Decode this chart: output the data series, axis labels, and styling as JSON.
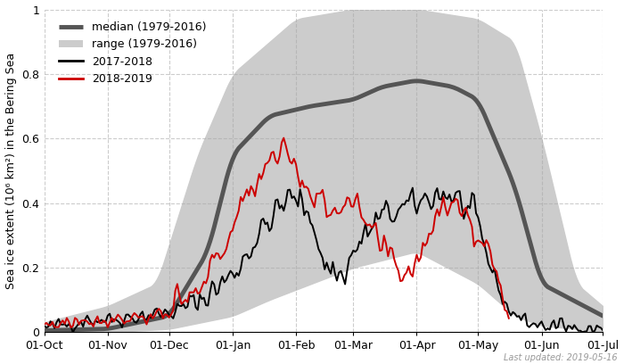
{
  "ylabel": "Sea ice extent (10⁶ km²) in the Bering Sea",
  "ylim": [
    0,
    1.0
  ],
  "grid_color": "#aaaaaa",
  "bg_color": "#ffffff",
  "range_color": "#cccccc",
  "median_color": "#555555",
  "year1_color": "#000000",
  "year2_color": "#cc0000",
  "last_updated": "Last updated: 2019-05-16",
  "legend_items": [
    "median (1979-2016)",
    "range (1979-2016)",
    "2017-2018",
    "2018-2019"
  ],
  "xtick_labels": [
    "01-Oct",
    "01-Nov",
    "01-Dec",
    "01-Jan",
    "01-Feb",
    "01-Mar",
    "01-Apr",
    "01-May",
    "01-Jun",
    "01-Jul"
  ]
}
